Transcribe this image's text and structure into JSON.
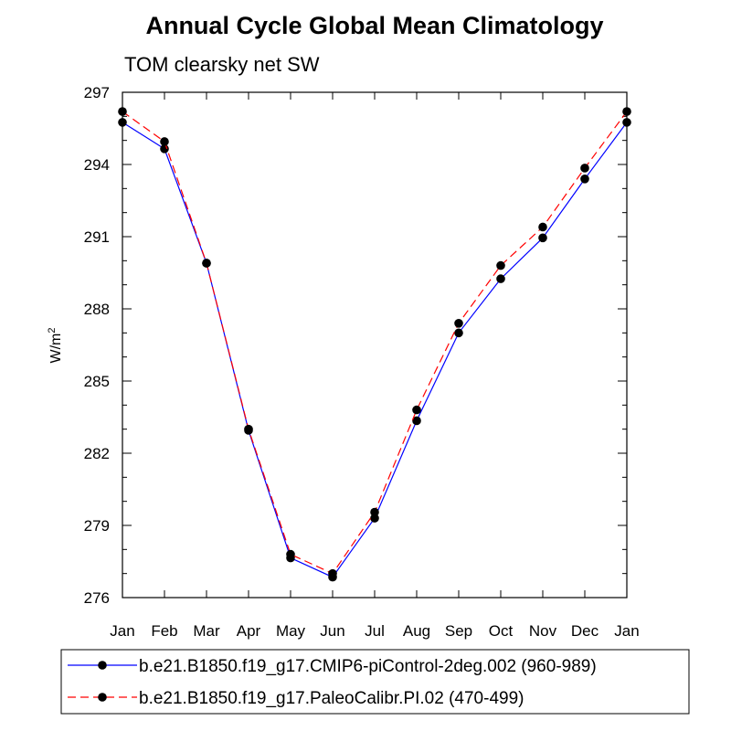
{
  "chart_data": {
    "type": "line",
    "title": "Annual Cycle Global Mean Climatology",
    "subtitle": "TOM clearsky net SW",
    "xlabel": "",
    "ylabel": "W/m",
    "ylabel_sup": "2",
    "categories": [
      "Jan",
      "Feb",
      "Mar",
      "Apr",
      "May",
      "Jun",
      "Jul",
      "Aug",
      "Sep",
      "Oct",
      "Nov",
      "Dec",
      "Jan"
    ],
    "yticks": [
      "276",
      "279",
      "282",
      "285",
      "288",
      "291",
      "294",
      "297"
    ],
    "ylim": [
      276,
      297
    ],
    "series": [
      {
        "name": "b.e21.B1850.f19_g17.CMIP6-piControl-2deg.002 (960-989)",
        "color": "#0000ff",
        "dash": "solid",
        "values": [
          295.75,
          294.65,
          289.9,
          282.95,
          277.65,
          276.85,
          279.3,
          283.35,
          287.0,
          289.25,
          290.95,
          293.4,
          295.75
        ]
      },
      {
        "name": "b.e21.B1850.f19_g17.PaleoCalibr.PI.02 (470-499)",
        "color": "#ff0000",
        "dash": "dashed",
        "values": [
          296.2,
          294.95,
          289.9,
          283.0,
          277.8,
          277.0,
          279.55,
          283.8,
          287.4,
          289.8,
          291.4,
          293.85,
          296.2
        ]
      }
    ]
  }
}
